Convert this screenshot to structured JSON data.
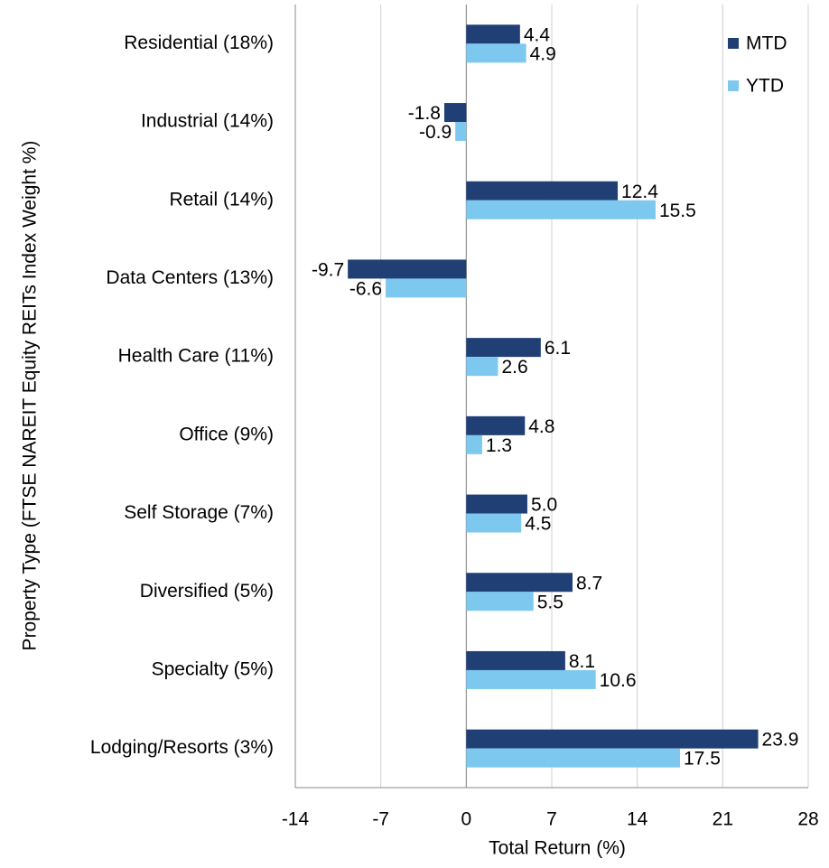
{
  "chart_data": {
    "type": "bar",
    "orientation": "horizontal",
    "x_label": "Total Return (%)",
    "y_label": "Property Type (FTSE NAREIT Equity REITs Index Weight %)",
    "categories": [
      "Residential (18%)",
      "Industrial (14%)",
      "Retail (14%)",
      "Data Centers (13%)",
      "Health Care (11%)",
      "Office (9%)",
      "Self Storage (7%)",
      "Diversified (5%)",
      "Specialty (5%)",
      "Lodging/Resorts (3%)"
    ],
    "series": [
      {
        "name": "MTD",
        "color": "#1f3f75",
        "values": [
          4.4,
          -1.8,
          12.4,
          -9.7,
          6.1,
          4.8,
          5,
          8.7,
          8.1,
          23.9
        ],
        "value_labels": [
          "4.4",
          "-1.8",
          "12.4",
          "-9.7",
          "6.1",
          "4.8",
          "5.0",
          "8.7",
          "8.1",
          "23.9"
        ]
      },
      {
        "name": "YTD",
        "color": "#7dc8ef",
        "values": [
          4.9,
          -0.9,
          15.5,
          -6.6,
          2.6,
          1.3,
          4.5,
          5.5,
          10.6,
          17.5
        ]
      }
    ],
    "xlim": [
      -14,
      28
    ],
    "xticks": [
      -14,
      -7,
      0,
      7,
      14,
      21,
      28
    ],
    "grid": true,
    "legend": "top-right"
  }
}
